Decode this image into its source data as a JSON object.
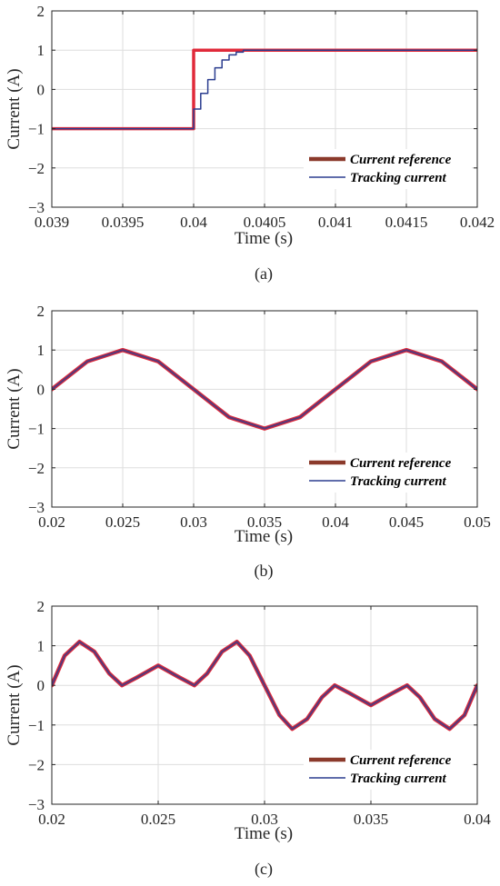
{
  "colors": {
    "reference": "#e02a3a",
    "reference_dark": "#8b3a2b",
    "tracking": "#2b3d8f",
    "grid": "#dedede",
    "axis": "#262626"
  },
  "chart_data": [
    {
      "type": "line",
      "panel_label": "(a)",
      "xlabel": "Time (s)",
      "ylabel": "Current (A)",
      "xlim": [
        0.039,
        0.042
      ],
      "ylim": [
        -3,
        2
      ],
      "xticks": [
        0.039,
        0.0395,
        0.04,
        0.0405,
        0.041,
        0.0415,
        0.042
      ],
      "xtick_labels": [
        "0.039",
        "0.0395",
        "0.04",
        "0.0405",
        "0.041",
        "0.0415",
        "0.042"
      ],
      "yticks": [
        -3,
        -2,
        -1,
        0,
        1,
        2
      ],
      "ytick_labels": [
        "−3",
        "−2",
        "−1",
        "0",
        "1",
        "2"
      ],
      "grid": true,
      "legend_position": "lower-right",
      "series": [
        {
          "name": "Current reference",
          "x": [
            0.039,
            0.04,
            0.04,
            0.042
          ],
          "y": [
            -1,
            -1,
            1,
            1
          ]
        },
        {
          "name": "Tracking current",
          "x": [
            0.039,
            0.04,
            0.04,
            0.04005,
            0.04005,
            0.0401,
            0.0401,
            0.04015,
            0.04015,
            0.0402,
            0.0402,
            0.04025,
            0.04025,
            0.0403,
            0.0403,
            0.04035,
            0.04035,
            0.042
          ],
          "y": [
            -1,
            -1,
            -0.5,
            -0.5,
            -0.1,
            -0.1,
            0.25,
            0.25,
            0.55,
            0.55,
            0.75,
            0.75,
            0.88,
            0.88,
            0.95,
            0.95,
            1,
            1
          ]
        }
      ]
    },
    {
      "type": "line",
      "panel_label": "(b)",
      "xlabel": "Time (s)",
      "ylabel": "Current (A)",
      "xlim": [
        0.02,
        0.05
      ],
      "ylim": [
        -3,
        2
      ],
      "xticks": [
        0.02,
        0.025,
        0.03,
        0.035,
        0.04,
        0.045,
        0.05
      ],
      "xtick_labels": [
        "0.02",
        "0.025",
        "0.03",
        "0.035",
        "0.04",
        "0.045",
        "0.05"
      ],
      "yticks": [
        -3,
        -2,
        -1,
        0,
        1,
        2
      ],
      "ytick_labels": [
        "−3",
        "−2",
        "−1",
        "0",
        "1",
        "2"
      ],
      "grid": true,
      "legend_position": "lower-right",
      "series": [
        {
          "name": "Current reference",
          "x": [
            0.02,
            0.0225,
            0.025,
            0.0275,
            0.03,
            0.0325,
            0.035,
            0.0375,
            0.04,
            0.0425,
            0.045,
            0.0475,
            0.05
          ],
          "y": [
            0,
            0.71,
            1,
            0.71,
            0,
            -0.71,
            -1,
            -0.71,
            0,
            0.71,
            1,
            0.71,
            0
          ]
        },
        {
          "name": "Tracking current",
          "x": [
            0.02,
            0.0225,
            0.025,
            0.0275,
            0.03,
            0.0325,
            0.035,
            0.0375,
            0.04,
            0.0425,
            0.045,
            0.0475,
            0.05
          ],
          "y": [
            0,
            0.71,
            1,
            0.71,
            0,
            -0.71,
            -1,
            -0.71,
            0,
            0.71,
            1,
            0.71,
            0
          ]
        }
      ]
    },
    {
      "type": "line",
      "panel_label": "(c)",
      "xlabel": "Time (s)",
      "ylabel": "Current (A)",
      "xlim": [
        0.02,
        0.04
      ],
      "ylim": [
        -3,
        2
      ],
      "xticks": [
        0.02,
        0.025,
        0.03,
        0.035,
        0.04
      ],
      "xtick_labels": [
        "0.02",
        "0.025",
        "0.03",
        "0.035",
        "0.04"
      ],
      "yticks": [
        -3,
        -2,
        -1,
        0,
        1,
        2
      ],
      "ytick_labels": [
        "−3",
        "−2",
        "−1",
        "0",
        "1",
        "2"
      ],
      "grid": true,
      "legend_position": "lower-right",
      "series": [
        {
          "name": "Current reference",
          "x": [
            0.02,
            0.0206,
            0.0213,
            0.022,
            0.0227,
            0.0233,
            0.024,
            0.025,
            0.026,
            0.0267,
            0.0273,
            0.028,
            0.0287,
            0.0293,
            0.03,
            0.0307,
            0.0313,
            0.032,
            0.0327,
            0.0333,
            0.034,
            0.035,
            0.036,
            0.0367,
            0.0373,
            0.038,
            0.0387,
            0.0394,
            0.04
          ],
          "y": [
            0,
            0.75,
            1.1,
            0.85,
            0.3,
            0.0,
            0.2,
            0.5,
            0.2,
            0.0,
            0.3,
            0.85,
            1.1,
            0.75,
            0,
            -0.75,
            -1.1,
            -0.85,
            -0.3,
            0.0,
            -0.2,
            -0.5,
            -0.2,
            0.0,
            -0.3,
            -0.85,
            -1.1,
            -0.75,
            0
          ]
        },
        {
          "name": "Tracking current",
          "x": [
            0.02,
            0.0206,
            0.0213,
            0.022,
            0.0227,
            0.0233,
            0.024,
            0.025,
            0.026,
            0.0267,
            0.0273,
            0.028,
            0.0287,
            0.0293,
            0.03,
            0.0307,
            0.0313,
            0.032,
            0.0327,
            0.0333,
            0.034,
            0.035,
            0.036,
            0.0367,
            0.0373,
            0.038,
            0.0387,
            0.0394,
            0.04
          ],
          "y": [
            0,
            0.75,
            1.1,
            0.85,
            0.3,
            0.0,
            0.2,
            0.5,
            0.2,
            0.0,
            0.3,
            0.85,
            1.1,
            0.75,
            0,
            -0.75,
            -1.1,
            -0.85,
            -0.3,
            0.0,
            -0.2,
            -0.5,
            -0.2,
            0.0,
            -0.3,
            -0.85,
            -1.1,
            -0.75,
            0
          ]
        }
      ]
    }
  ]
}
